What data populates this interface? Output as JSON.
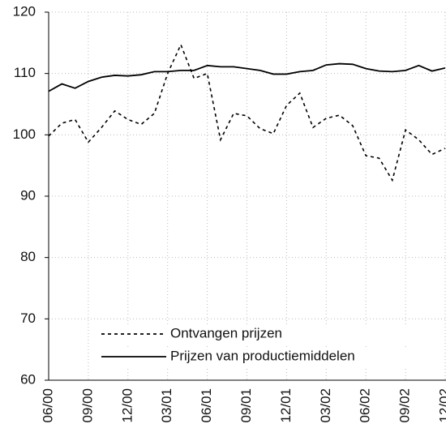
{
  "chart_data": {
    "type": "line",
    "categories": [
      "06/00",
      null,
      null,
      "09/00",
      null,
      null,
      "12/00",
      null,
      null,
      "03/01",
      null,
      null,
      "06/01",
      null,
      null,
      "09/01",
      null,
      null,
      "12/01",
      null,
      null,
      "03/02",
      null,
      null,
      "06/02",
      null,
      null,
      "09/02",
      null,
      null,
      "12/02"
    ],
    "series": [
      {
        "name": "Ontvangen prijzen",
        "color": "#000000",
        "style": "dashed",
        "values": [
          99.8,
          101.9,
          102.5,
          98.8,
          101.2,
          103.9,
          102.5,
          101.7,
          103.5,
          110,
          114.7,
          109.2,
          110,
          99.2,
          103.5,
          103.1,
          101,
          100.2,
          104.8,
          106.8,
          101.2,
          102.7,
          103.2,
          101.5,
          96.6,
          96.2,
          92.6,
          100.8,
          99.2,
          96.8,
          97.8
        ]
      },
      {
        "name": "Prijzen van productiemiddelen",
        "color": "#000000",
        "style": "solid",
        "values": [
          107.1,
          108.3,
          107.6,
          108.7,
          109.4,
          109.7,
          109.6,
          109.8,
          110.3,
          110.3,
          110.5,
          110.5,
          111.3,
          111.1,
          111.1,
          110.8,
          110.5,
          109.9,
          109.9,
          110.3,
          110.5,
          111.4,
          111.6,
          111.5,
          110.8,
          110.4,
          110.3,
          110.5,
          111.3,
          110.4,
          110.9
        ]
      }
    ],
    "ylim": [
      60,
      120
    ],
    "yticks": [
      60,
      70,
      80,
      90,
      100,
      110,
      120
    ],
    "grid": true,
    "legend": "lower left"
  }
}
